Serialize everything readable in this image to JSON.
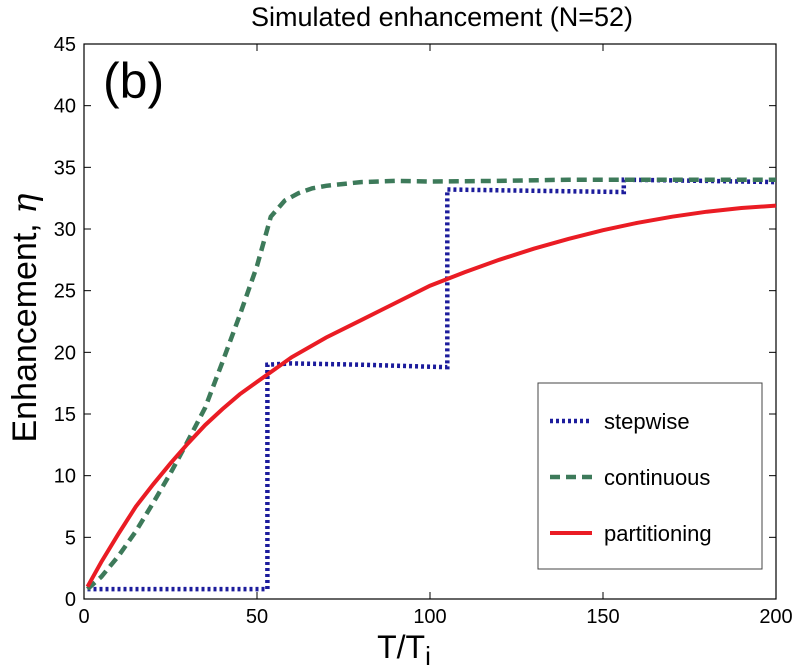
{
  "chart_data": {
    "type": "line",
    "title": "Simulated enhancement (N=52)",
    "panel_label": "(b)",
    "xlabel": "T/T",
    "xlabel_subscript": "i",
    "ylabel": "Enhancement, ",
    "ylabel_symbol": "η",
    "xlim": [
      0,
      200
    ],
    "ylim": [
      0,
      45
    ],
    "xticks": [
      "0",
      "50",
      "100",
      "150",
      "200"
    ],
    "yticks": [
      "0",
      "5",
      "10",
      "15",
      "20",
      "25",
      "30",
      "35",
      "40",
      "45"
    ],
    "grid": false,
    "legend_position": "lower-right",
    "series": [
      {
        "name": "stepwise",
        "color": "#1c1c9c",
        "style": "dotted",
        "points": [
          [
            1,
            0.8
          ],
          [
            52,
            0.8
          ],
          [
            53,
            0.8
          ],
          [
            53,
            19.0
          ],
          [
            60,
            19.1
          ],
          [
            80,
            19.0
          ],
          [
            104,
            18.8
          ],
          [
            105,
            18.8
          ],
          [
            105,
            33.2
          ],
          [
            130,
            33.1
          ],
          [
            155,
            33.0
          ],
          [
            156,
            33.0
          ],
          [
            156,
            34.0
          ],
          [
            180,
            33.9
          ],
          [
            200,
            33.8
          ]
        ]
      },
      {
        "name": "continuous",
        "color": "#3d7a5a",
        "style": "dashed",
        "points": [
          [
            1,
            0.8
          ],
          [
            5,
            1.8
          ],
          [
            10,
            3.5
          ],
          [
            15,
            5.5
          ],
          [
            20,
            7.8
          ],
          [
            25,
            10.2
          ],
          [
            30,
            12.8
          ],
          [
            35,
            15.5
          ],
          [
            40,
            19.2
          ],
          [
            45,
            23.0
          ],
          [
            50,
            27.0
          ],
          [
            54,
            31.0
          ],
          [
            58,
            32.3
          ],
          [
            62,
            32.9
          ],
          [
            66,
            33.3
          ],
          [
            70,
            33.5
          ],
          [
            80,
            33.8
          ],
          [
            90,
            33.9
          ],
          [
            100,
            33.85
          ],
          [
            120,
            33.9
          ],
          [
            140,
            34.0
          ],
          [
            160,
            34.0
          ],
          [
            180,
            34.0
          ],
          [
            200,
            34.0
          ]
        ]
      },
      {
        "name": "partitioning",
        "color": "#ea1c24",
        "style": "solid",
        "points": [
          [
            1,
            1.0
          ],
          [
            5,
            3.0
          ],
          [
            10,
            5.3
          ],
          [
            15,
            7.5
          ],
          [
            20,
            9.3
          ],
          [
            25,
            11.0
          ],
          [
            30,
            12.6
          ],
          [
            35,
            14.1
          ],
          [
            40,
            15.4
          ],
          [
            45,
            16.6
          ],
          [
            50,
            17.6
          ],
          [
            55,
            18.6
          ],
          [
            60,
            19.6
          ],
          [
            70,
            21.2
          ],
          [
            80,
            22.6
          ],
          [
            90,
            24.0
          ],
          [
            100,
            25.4
          ],
          [
            110,
            26.5
          ],
          [
            120,
            27.5
          ],
          [
            130,
            28.4
          ],
          [
            140,
            29.2
          ],
          [
            150,
            29.9
          ],
          [
            160,
            30.5
          ],
          [
            170,
            31.0
          ],
          [
            180,
            31.4
          ],
          [
            190,
            31.7
          ],
          [
            200,
            31.9
          ]
        ]
      }
    ]
  }
}
